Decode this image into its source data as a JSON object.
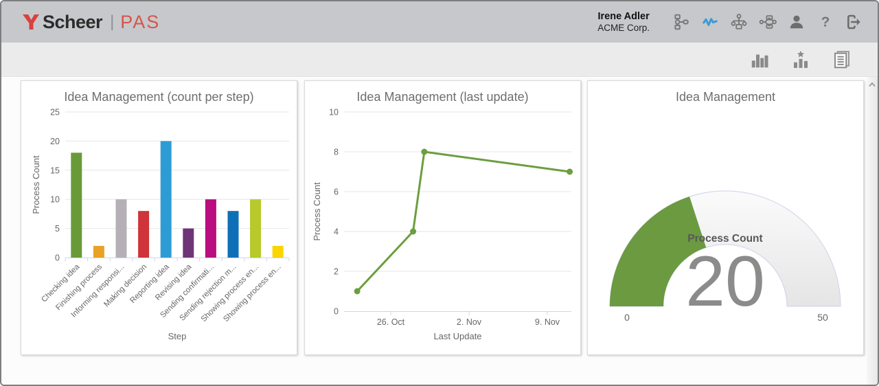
{
  "header": {
    "brand": "Scheer",
    "separator": "|",
    "product": "PAS",
    "user": {
      "name": "Irene Adler",
      "org": "ACME Corp."
    },
    "nav_icons": [
      {
        "name": "process-steps-icon",
        "active": false
      },
      {
        "name": "monitoring-pulse-icon",
        "active": true
      },
      {
        "name": "sitemap-icon",
        "active": false
      },
      {
        "name": "process-diagram-icon",
        "active": false
      },
      {
        "name": "user-icon",
        "active": false
      },
      {
        "name": "help-icon",
        "active": false
      },
      {
        "name": "logout-icon",
        "active": false
      }
    ]
  },
  "toolbar": {
    "icons": [
      "column-chart-icon",
      "ranking-chart-icon",
      "report-icon"
    ]
  },
  "colors": {
    "header_bg": "#c7c8cb",
    "toolbar_bg": "#ebebeb",
    "accent_blue": "#3b9ad9",
    "icon_gray": "#767676",
    "brand_red": "#d8423e",
    "axis_line": "#ccd6eb",
    "grid_line": "#e6e6e6",
    "tick_text": "#666666",
    "title_text": "#6e6e6e"
  },
  "chart_data": [
    {
      "type": "bar",
      "title": "Idea Management (count per step)",
      "xlabel": "Step",
      "ylabel": "Process Count",
      "ylim": [
        0,
        25
      ],
      "yticks": [
        0,
        5,
        10,
        15,
        20,
        25
      ],
      "categories": [
        "Checking idea",
        "Finishing process",
        "Informing responsi...",
        "Making decision",
        "Reporting idea",
        "Revising idea",
        "Sending confirmati...",
        "Sending rejection m...",
        "Showing process en...",
        "Showing process en..."
      ],
      "values": [
        18,
        2,
        10,
        8,
        20,
        5,
        10,
        8,
        10,
        2
      ],
      "bar_colors": [
        "#699a3a",
        "#e8a226",
        "#b4b0b6",
        "#ce3439",
        "#2e9cd4",
        "#6e3477",
        "#ba0d80",
        "#0d70b7",
        "#b6ca2c",
        "#fad500"
      ],
      "grid": true,
      "legend": "none"
    },
    {
      "type": "line",
      "title": "Idea Management (last update)",
      "xlabel": "Last Update",
      "ylabel": "Process Count",
      "ylim": [
        0,
        10
      ],
      "yticks": [
        0,
        2,
        4,
        6,
        8,
        10
      ],
      "xticks": [
        "26. Oct",
        "2. Nov",
        "9. Nov"
      ],
      "points": [
        {
          "x": "23. Oct",
          "y": 1
        },
        {
          "x": "28. Oct",
          "y": 4
        },
        {
          "x": "29. Oct",
          "y": 8
        },
        {
          "x": "11. Nov",
          "y": 7
        }
      ],
      "line_color": "#6b9e3e",
      "grid": true,
      "legend": "none"
    },
    {
      "type": "gauge",
      "title": "Idea Management",
      "label": "Process Count",
      "value": 20,
      "min": 0,
      "max": 50,
      "fill_color": "#6b9a40",
      "value_color": "#8b8b8b"
    }
  ]
}
